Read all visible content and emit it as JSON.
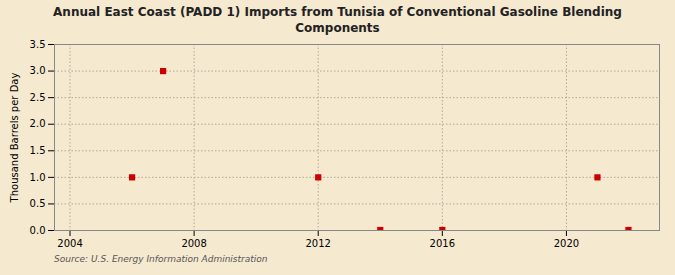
{
  "chart_data": {
    "type": "scatter",
    "title": "Annual East Coast (PADD 1) Imports from Tunisia of Conventional Gasoline Blending\nComponents",
    "ylabel": "Thousand Barrels per Day",
    "source": "Source: U.S. Energy Information Administration",
    "x": [
      2006,
      2007,
      2012,
      2014,
      2016,
      2021,
      2022
    ],
    "values": [
      1.0,
      3.0,
      1.0,
      0.01,
      0.01,
      1.0,
      0.01
    ],
    "color": "#cc0000",
    "marker": "square",
    "xlim": [
      2003.5,
      2023
    ],
    "ylim": [
      0.0,
      3.5
    ],
    "xticks": [
      2004,
      2008,
      2012,
      2016,
      2020
    ],
    "yticks": [
      {
        "value": 0.0,
        "label": "0.0"
      },
      0.5,
      {
        "value": 1.0,
        "label": "1.0"
      },
      1.5,
      {
        "value": 2.0,
        "label": "2.0"
      },
      2.5,
      {
        "value": 3.0,
        "label": "3.0"
      },
      3.5
    ],
    "grid": true
  }
}
